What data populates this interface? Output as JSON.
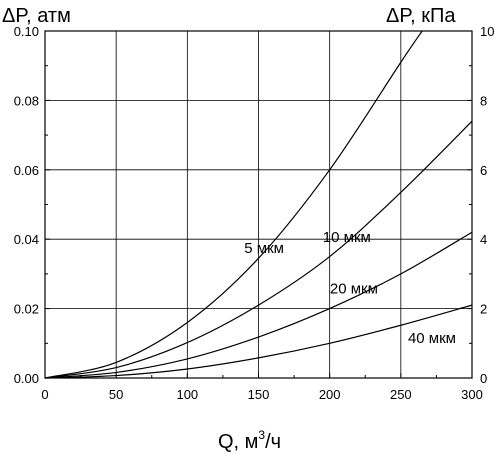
{
  "chart_data": {
    "type": "line",
    "xlabel": "Q, м",
    "xlabel_sup": "3",
    "xlabel_suffix": "/ч",
    "ylabel_left": "ΔP, атм",
    "ylabel_right": "ΔP, кПа",
    "xlim": [
      0,
      300
    ],
    "ylim_left": [
      0,
      0.1
    ],
    "ylim_right": [
      0,
      10
    ],
    "x_ticks": [
      0,
      50,
      100,
      150,
      200,
      250,
      300
    ],
    "y_ticks_left": [
      "0.00",
      "0.02",
      "0.04",
      "0.06",
      "0.08",
      "0.10"
    ],
    "y_ticks_right": [
      "0",
      "2",
      "4",
      "6",
      "8",
      "10"
    ],
    "grid": true,
    "series": [
      {
        "name": "5 мкм",
        "x": [
          0,
          50,
          100,
          150,
          200,
          250,
          265
        ],
        "y": [
          0,
          0.0045,
          0.016,
          0.0345,
          0.06,
          0.091,
          0.1
        ]
      },
      {
        "name": "10 мкм",
        "x": [
          0,
          50,
          100,
          150,
          200,
          250,
          300
        ],
        "y": [
          0,
          0.003,
          0.0102,
          0.021,
          0.035,
          0.0535,
          0.074
        ]
      },
      {
        "name": "20 мкм",
        "x": [
          0,
          50,
          100,
          150,
          200,
          250,
          300
        ],
        "y": [
          0,
          0.0016,
          0.0055,
          0.0118,
          0.02,
          0.03,
          0.042
        ]
      },
      {
        "name": "40 мкм",
        "x": [
          0,
          50,
          100,
          150,
          200,
          250,
          300
        ],
        "y": [
          0,
          0.0007,
          0.0026,
          0.0058,
          0.01,
          0.0152,
          0.021
        ]
      }
    ]
  }
}
